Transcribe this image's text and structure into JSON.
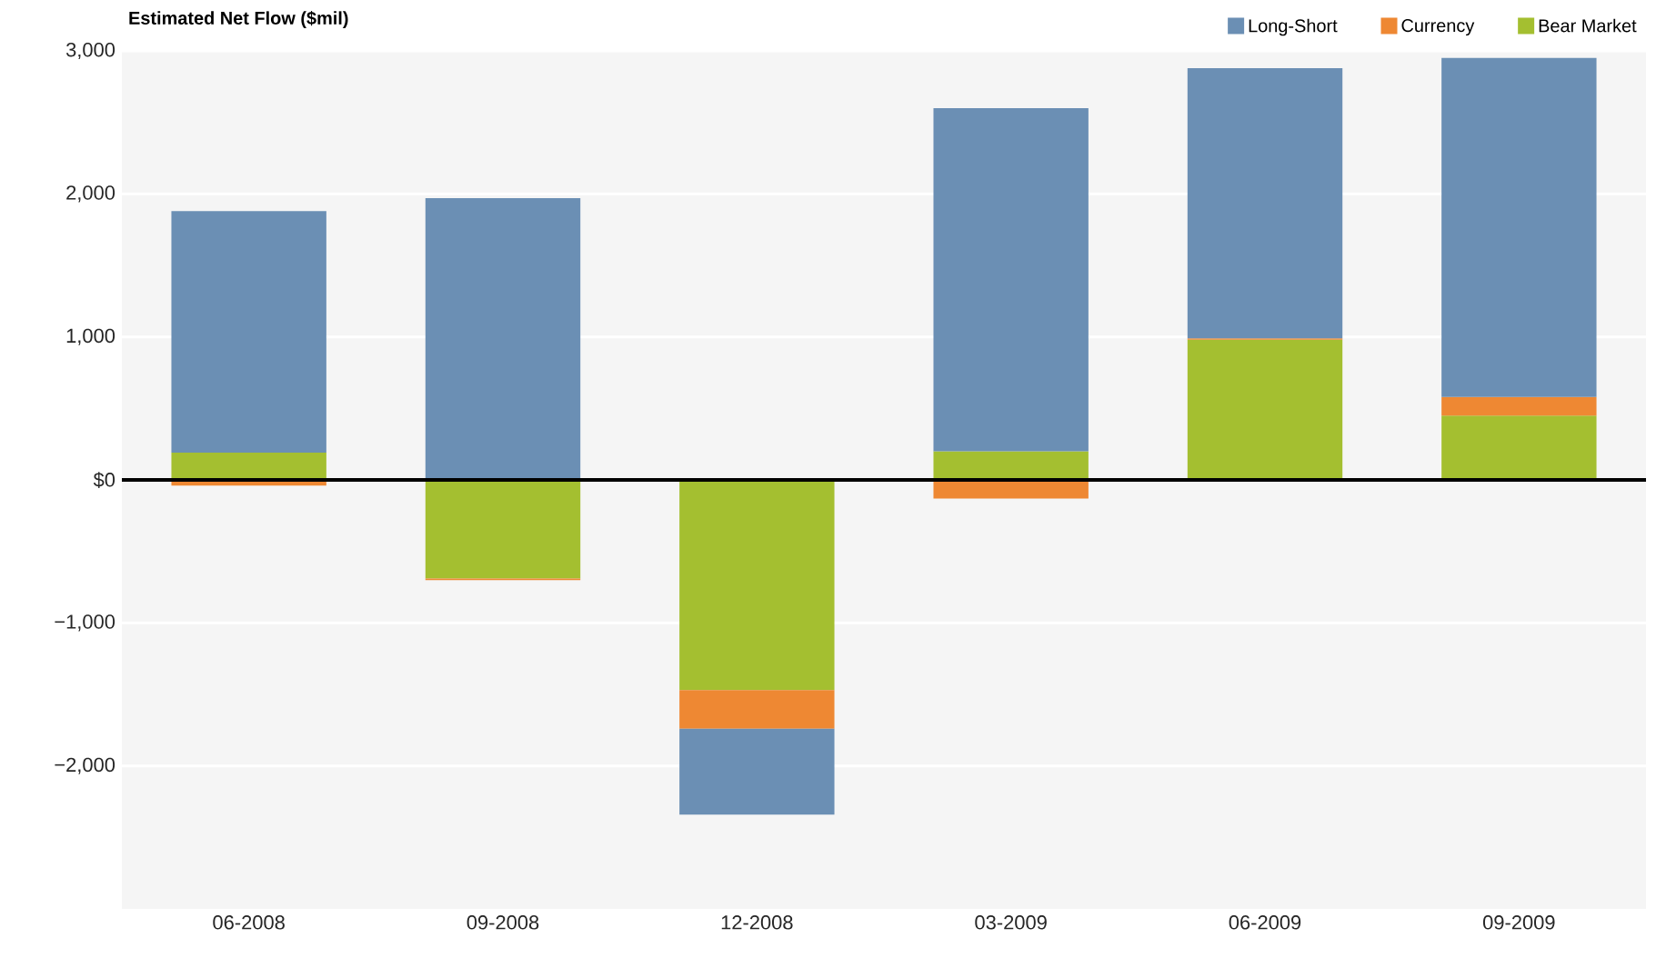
{
  "chart_data": {
    "type": "bar",
    "stacked": true,
    "title": "Estimated Net Flow ($mil)",
    "categories": [
      "06-2008",
      "09-2008",
      "12-2008",
      "03-2009",
      "06-2009",
      "09-2009"
    ],
    "series": [
      {
        "name": "Bear Market",
        "color": "#a4bf30",
        "values": [
          190,
          -690,
          -1470,
          200,
          980,
          450
        ]
      },
      {
        "name": "Currency",
        "color": "#ee8833",
        "values": [
          -40,
          -10,
          -270,
          -130,
          10,
          130
        ]
      },
      {
        "name": "Long-Short",
        "color": "#6b8fb4",
        "values": [
          1690,
          1970,
          -600,
          2400,
          1890,
          2370
        ]
      }
    ],
    "ylim": [
      -3000,
      3000
    ],
    "yticks": [
      {
        "value": -2000,
        "label": "−2,000"
      },
      {
        "value": -1000,
        "label": "−1,000"
      },
      {
        "value": 0,
        "label": "$0"
      },
      {
        "value": 1000,
        "label": "1,000"
      },
      {
        "value": 2000,
        "label": "2,000"
      },
      {
        "value": 3000,
        "label": "3,000"
      }
    ],
    "ref_lines": [
      {
        "axis": "y",
        "value": 0,
        "color": "#000000"
      }
    ],
    "grid": "y",
    "legend": "top right"
  }
}
